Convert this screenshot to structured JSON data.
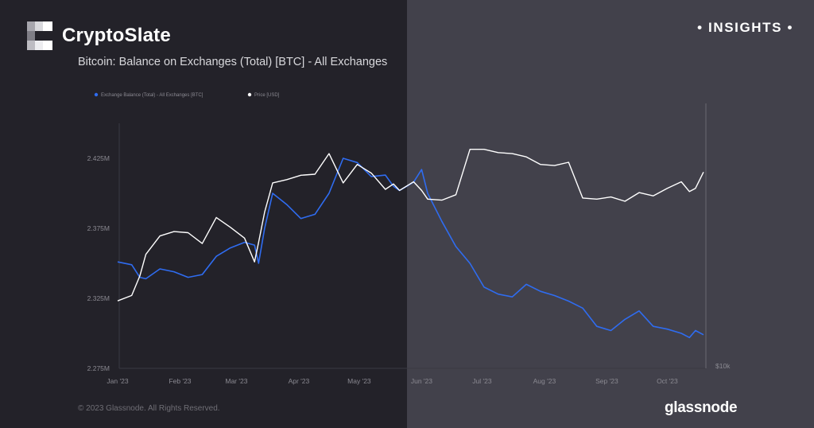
{
  "brand": {
    "name": "CryptoSlate",
    "badge": "INSIGHTS"
  },
  "colors": {
    "exchange_balance": "#2f6cf0",
    "price": "#ffffff",
    "background_left": "#232229",
    "background_right": "#42414b"
  },
  "footer": {
    "copyright": "© 2023 Glassnode. All Rights Reserved.",
    "source_logo": "glassnode"
  },
  "chart_data": {
    "type": "line",
    "title": "Bitcoin: Balance on Exchanges (Total) [BTC] - All Exchanges",
    "legend": [
      "Exchange Balance (Total) - All Exchanges [BTC]",
      "Price [USD]"
    ],
    "legend_placement": "top-left",
    "xlabels": [
      "Jan '23",
      "Feb '23",
      "Mar '23",
      "Apr '23",
      "May '23",
      "Jun '23",
      "Jul '23",
      "Aug '23",
      "Sep '23",
      "Oct '23"
    ],
    "yticks": [
      "2.425M",
      "2.375M",
      "2.325M",
      "2.275M"
    ],
    "yrange": [
      2275000,
      2450000
    ],
    "right_axis_label": "$10k",
    "grid": false,
    "series": [
      {
        "name": "Exchange Balance (Total) - All Exchanges [BTC]",
        "axis": "left",
        "x": [
          "2023-01-01",
          "2023-01-08",
          "2023-01-12",
          "2023-01-15",
          "2023-01-22",
          "2023-01-29",
          "2023-02-05",
          "2023-02-12",
          "2023-02-19",
          "2023-02-26",
          "2023-03-05",
          "2023-03-10",
          "2023-03-12",
          "2023-03-15",
          "2023-03-19",
          "2023-03-26",
          "2023-04-02",
          "2023-04-09",
          "2023-04-16",
          "2023-04-23",
          "2023-04-30",
          "2023-05-07",
          "2023-05-14",
          "2023-05-18",
          "2023-05-21",
          "2023-05-28",
          "2023-06-01",
          "2023-06-04",
          "2023-06-11",
          "2023-06-18",
          "2023-06-25",
          "2023-07-02",
          "2023-07-09",
          "2023-07-16",
          "2023-07-23",
          "2023-07-30",
          "2023-08-06",
          "2023-08-13",
          "2023-08-20",
          "2023-08-27",
          "2023-09-03",
          "2023-09-10",
          "2023-09-17",
          "2023-09-24",
          "2023-10-01",
          "2023-10-08",
          "2023-10-12",
          "2023-10-15",
          "2023-10-19"
        ],
        "values": [
          2351000,
          2349000,
          2340000,
          2339000,
          2346000,
          2344000,
          2340000,
          2342000,
          2355000,
          2361000,
          2365000,
          2363000,
          2350000,
          2375000,
          2400000,
          2392000,
          2382000,
          2385000,
          2400000,
          2425000,
          2422000,
          2412000,
          2413000,
          2405000,
          2402000,
          2408000,
          2417000,
          2400000,
          2380000,
          2362000,
          2350000,
          2333000,
          2328000,
          2326000,
          2335000,
          2330000,
          2327000,
          2323000,
          2318000,
          2305000,
          2302000,
          2310000,
          2316000,
          2305000,
          2303000,
          2300000,
          2297000,
          2302000,
          2299000
        ]
      },
      {
        "name": "Price [USD]",
        "axis": "right",
        "x": [
          "2023-01-01",
          "2023-01-08",
          "2023-01-12",
          "2023-01-15",
          "2023-01-22",
          "2023-01-29",
          "2023-02-05",
          "2023-02-12",
          "2023-02-19",
          "2023-02-26",
          "2023-03-05",
          "2023-03-10",
          "2023-03-12",
          "2023-03-15",
          "2023-03-19",
          "2023-03-26",
          "2023-04-02",
          "2023-04-09",
          "2023-04-16",
          "2023-04-23",
          "2023-04-30",
          "2023-05-07",
          "2023-05-14",
          "2023-05-18",
          "2023-05-21",
          "2023-05-28",
          "2023-06-01",
          "2023-06-04",
          "2023-06-11",
          "2023-06-18",
          "2023-06-25",
          "2023-07-02",
          "2023-07-09",
          "2023-07-16",
          "2023-07-23",
          "2023-07-30",
          "2023-08-06",
          "2023-08-13",
          "2023-08-20",
          "2023-08-27",
          "2023-09-03",
          "2023-09-10",
          "2023-09-17",
          "2023-09-24",
          "2023-10-01",
          "2023-10-08",
          "2023-10-12",
          "2023-10-15",
          "2023-10-19"
        ],
        "values": [
          16600,
          17100,
          18900,
          20900,
          22600,
          23000,
          22900,
          21900,
          24300,
          23400,
          22400,
          20200,
          22000,
          24800,
          27500,
          27800,
          28200,
          28300,
          30200,
          27500,
          29200,
          28400,
          26900,
          27400,
          26800,
          27600,
          26800,
          26000,
          25900,
          26400,
          30600,
          30600,
          30300,
          30200,
          29900,
          29200,
          29100,
          29400,
          26100,
          26000,
          26200,
          25800,
          26600,
          26300,
          27000,
          27600,
          26700,
          27000,
          28500
        ]
      }
    ]
  }
}
